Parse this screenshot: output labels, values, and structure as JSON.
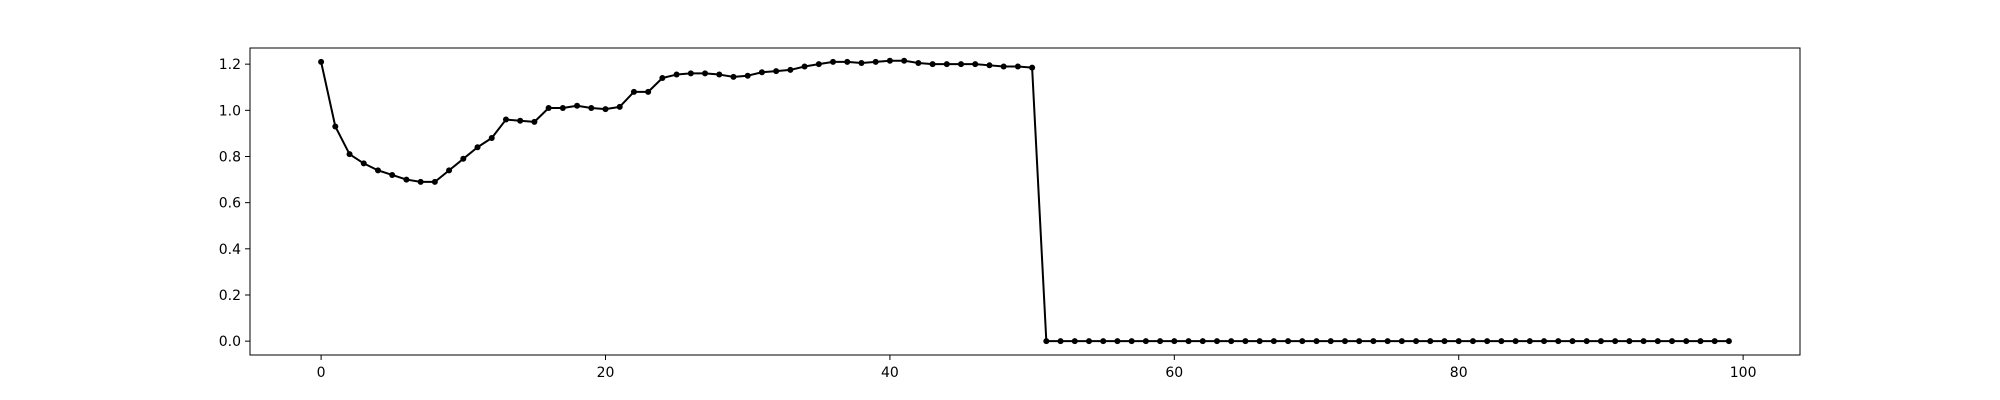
{
  "chart_data": {
    "type": "line",
    "title": "",
    "xlabel": "",
    "ylabel": "",
    "xlim": [
      -5,
      104
    ],
    "ylim": [
      -0.06,
      1.27
    ],
    "grid": false,
    "x_ticks": [
      0,
      20,
      40,
      60,
      80,
      100
    ],
    "x_tick_labels": [
      "0",
      "20",
      "40",
      "60",
      "80",
      "100"
    ],
    "y_ticks": [
      0.0,
      0.2,
      0.4,
      0.6,
      0.8,
      1.0,
      1.2
    ],
    "y_tick_labels": [
      "0.0",
      "0.2",
      "0.4",
      "0.6",
      "0.8",
      "1.0",
      "1.2"
    ],
    "series": [
      {
        "color": "#000000",
        "marker": "dot",
        "x": [
          0,
          1,
          2,
          3,
          4,
          5,
          6,
          7,
          8,
          9,
          10,
          11,
          12,
          13,
          14,
          15,
          16,
          17,
          18,
          19,
          20,
          21,
          22,
          23,
          24,
          25,
          26,
          27,
          28,
          29,
          30,
          31,
          32,
          33,
          34,
          35,
          36,
          37,
          38,
          39,
          40,
          41,
          42,
          43,
          44,
          45,
          46,
          47,
          48,
          49,
          50,
          51,
          52,
          53,
          54,
          55,
          56,
          57,
          58,
          59,
          60,
          61,
          62,
          63,
          64,
          65,
          66,
          67,
          68,
          69,
          70,
          71,
          72,
          73,
          74,
          75,
          76,
          77,
          78,
          79,
          80,
          81,
          82,
          83,
          84,
          85,
          86,
          87,
          88,
          89,
          90,
          91,
          92,
          93,
          94,
          95,
          96,
          97,
          98,
          99
        ],
        "values": [
          1.21,
          0.93,
          0.81,
          0.77,
          0.74,
          0.72,
          0.7,
          0.69,
          0.69,
          0.74,
          0.79,
          0.84,
          0.88,
          0.96,
          0.955,
          0.95,
          1.01,
          1.01,
          1.02,
          1.01,
          1.005,
          1.015,
          1.08,
          1.08,
          1.14,
          1.155,
          1.16,
          1.16,
          1.155,
          1.145,
          1.15,
          1.165,
          1.17,
          1.175,
          1.19,
          1.2,
          1.21,
          1.21,
          1.205,
          1.21,
          1.215,
          1.215,
          1.205,
          1.2,
          1.2,
          1.2,
          1.2,
          1.195,
          1.19,
          1.19,
          1.185,
          0,
          0,
          0,
          0,
          0,
          0,
          0,
          0,
          0,
          0,
          0,
          0,
          0,
          0,
          0,
          0,
          0,
          0,
          0,
          0,
          0,
          0,
          0,
          0,
          0,
          0,
          0,
          0,
          0,
          0,
          0,
          0,
          0,
          0,
          0,
          0,
          0,
          0,
          0,
          0,
          0,
          0,
          0,
          0,
          0,
          0,
          0,
          0,
          0
        ]
      }
    ]
  }
}
